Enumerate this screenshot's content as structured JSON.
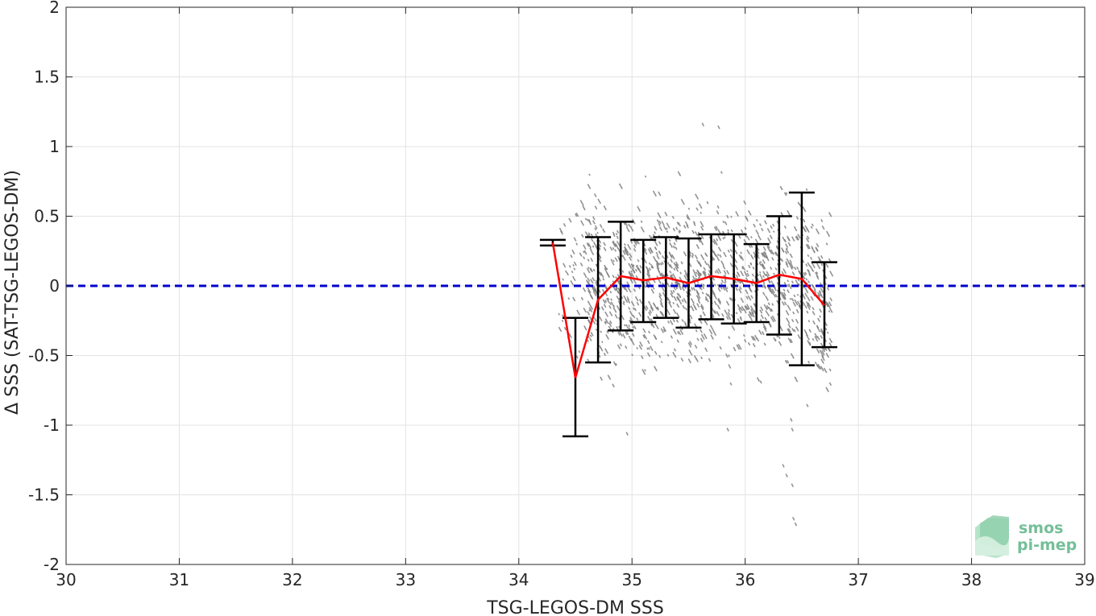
{
  "chart_data": {
    "type": "scatter",
    "xlabel": "TSG-LEGOS-DM SSS",
    "ylabel": "Δ SSS (SAT-TSG-LEGOS-DM)",
    "xlim": [
      30,
      39
    ],
    "ylim": [
      -2,
      2
    ],
    "xticks": [
      "30",
      "31",
      "32",
      "33",
      "34",
      "35",
      "36",
      "37",
      "38",
      "39"
    ],
    "yticks": [
      "-2",
      "-1.5",
      "-1",
      "-0.5",
      "0",
      "0.5",
      "1",
      "1.5",
      "2"
    ],
    "grid": true,
    "zero_line": {
      "y": 0,
      "color": "#0000cc",
      "style": "dashed"
    },
    "series": [
      {
        "style": "binned-mean-errorbar",
        "line_color": "#ff0000",
        "errorbar_color": "#000000",
        "x": [
          34.3,
          34.5,
          34.7,
          34.9,
          35.1,
          35.3,
          35.5,
          35.7,
          35.9,
          36.1,
          36.3,
          36.5,
          36.7
        ],
        "mean": [
          0.31,
          -0.66,
          -0.1,
          0.07,
          0.04,
          0.06,
          0.02,
          0.07,
          0.05,
          0.02,
          0.08,
          0.05,
          -0.14
        ],
        "lower": [
          0.29,
          -1.08,
          -0.55,
          -0.32,
          -0.26,
          -0.23,
          -0.3,
          -0.24,
          -0.27,
          -0.26,
          -0.35,
          -0.57,
          -0.44
        ],
        "upper": [
          0.33,
          -0.23,
          0.35,
          0.46,
          0.33,
          0.35,
          0.34,
          0.37,
          0.37,
          0.3,
          0.5,
          0.67,
          0.17
        ]
      },
      {
        "style": "points",
        "color": "#808080",
        "description_of_cloud": "dense gray point cloud",
        "x_range": [
          34.35,
          36.75
        ],
        "y_range": [
          -1.7,
          1.17
        ]
      }
    ]
  },
  "logo": {
    "line1": "smos",
    "line2": "pi-mep"
  }
}
